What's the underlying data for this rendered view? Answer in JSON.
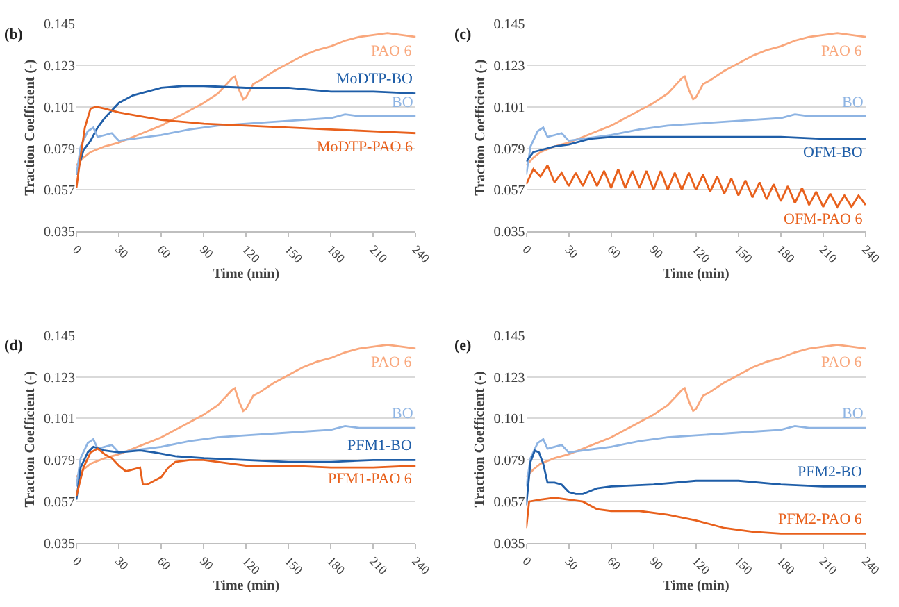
{
  "chart_data": [
    {
      "type": "line",
      "title": "(b)",
      "xlabel": "Time (min)",
      "ylabel": "Traction Coefficient (-)",
      "xlim": [
        0,
        240
      ],
      "xticks": [
        0,
        30,
        60,
        90,
        120,
        150,
        180,
        210,
        240
      ],
      "ylim": [
        0.035,
        0.145
      ],
      "yticks": [
        0.035,
        0.057,
        0.079,
        0.101,
        0.123,
        0.145
      ],
      "grid": "y",
      "legend": false,
      "marker": "none",
      "line_style": "solid",
      "series": [
        {
          "name": "PAO 6",
          "color": "#f9a77c",
          "x": [
            0,
            5,
            10,
            20,
            30,
            40,
            50,
            60,
            70,
            80,
            90,
            100,
            110,
            112,
            115,
            118,
            120,
            125,
            130,
            140,
            150,
            160,
            170,
            180,
            190,
            200,
            210,
            220,
            230,
            240
          ],
          "values": [
            0.07,
            0.074,
            0.077,
            0.08,
            0.082,
            0.085,
            0.088,
            0.091,
            0.095,
            0.099,
            0.103,
            0.108,
            0.116,
            0.117,
            0.11,
            0.105,
            0.106,
            0.113,
            0.115,
            0.12,
            0.124,
            0.128,
            0.131,
            0.133,
            0.136,
            0.138,
            0.139,
            0.14,
            0.139,
            0.138
          ]
        },
        {
          "name": "MoDTP-BO",
          "color": "#1f5ea8",
          "x": [
            0,
            5,
            10,
            15,
            20,
            30,
            40,
            50,
            60,
            75,
            90,
            120,
            150,
            180,
            210,
            240
          ],
          "values": [
            0.065,
            0.078,
            0.083,
            0.09,
            0.095,
            0.103,
            0.107,
            0.109,
            0.111,
            0.112,
            0.112,
            0.111,
            0.111,
            0.109,
            0.109,
            0.108
          ]
        },
        {
          "name": "BO",
          "color": "#8eb4e3",
          "x": [
            0,
            3,
            8,
            12,
            15,
            20,
            25,
            30,
            40,
            50,
            60,
            80,
            100,
            120,
            140,
            160,
            180,
            190,
            200,
            220,
            240
          ],
          "values": [
            0.065,
            0.08,
            0.088,
            0.09,
            0.085,
            0.086,
            0.087,
            0.083,
            0.084,
            0.085,
            0.086,
            0.089,
            0.091,
            0.092,
            0.093,
            0.094,
            0.095,
            0.097,
            0.096,
            0.096,
            0.096
          ]
        },
        {
          "name": "MoDTP-PAO 6",
          "color": "#e8601c",
          "x": [
            0,
            3,
            6,
            10,
            14,
            20,
            30,
            45,
            60,
            90,
            120,
            150,
            180,
            210,
            240
          ],
          "values": [
            0.058,
            0.075,
            0.09,
            0.1,
            0.101,
            0.1,
            0.098,
            0.096,
            0.094,
            0.092,
            0.091,
            0.09,
            0.089,
            0.088,
            0.087
          ]
        }
      ]
    },
    {
      "type": "line",
      "title": "(c)",
      "xlabel": "Time (min)",
      "ylabel": "Traction Coefficient (-)",
      "xlim": [
        0,
        240
      ],
      "xticks": [
        0,
        30,
        60,
        90,
        120,
        150,
        180,
        210,
        240
      ],
      "ylim": [
        0.035,
        0.145
      ],
      "yticks": [
        0.035,
        0.057,
        0.079,
        0.101,
        0.123,
        0.145
      ],
      "grid": "y",
      "legend": false,
      "marker": "none",
      "line_style": "solid",
      "series": [
        {
          "name": "PAO 6",
          "color": "#f9a77c",
          "x": [
            0,
            5,
            10,
            20,
            30,
            40,
            50,
            60,
            70,
            80,
            90,
            100,
            110,
            112,
            115,
            118,
            120,
            125,
            130,
            140,
            150,
            160,
            170,
            180,
            190,
            200,
            210,
            220,
            230,
            240
          ],
          "values": [
            0.07,
            0.074,
            0.077,
            0.08,
            0.082,
            0.085,
            0.088,
            0.091,
            0.095,
            0.099,
            0.103,
            0.108,
            0.116,
            0.117,
            0.11,
            0.105,
            0.106,
            0.113,
            0.115,
            0.12,
            0.124,
            0.128,
            0.131,
            0.133,
            0.136,
            0.138,
            0.139,
            0.14,
            0.139,
            0.138
          ]
        },
        {
          "name": "BO",
          "color": "#8eb4e3",
          "x": [
            0,
            3,
            8,
            12,
            15,
            20,
            25,
            30,
            40,
            50,
            60,
            80,
            100,
            120,
            140,
            160,
            180,
            190,
            200,
            220,
            240
          ],
          "values": [
            0.065,
            0.08,
            0.088,
            0.09,
            0.085,
            0.086,
            0.087,
            0.083,
            0.084,
            0.085,
            0.086,
            0.089,
            0.091,
            0.092,
            0.093,
            0.094,
            0.095,
            0.097,
            0.096,
            0.096,
            0.096
          ]
        },
        {
          "name": "OFM-BO",
          "color": "#1f5ea8",
          "x": [
            0,
            5,
            10,
            20,
            30,
            45,
            60,
            90,
            120,
            150,
            180,
            210,
            240
          ],
          "values": [
            0.072,
            0.077,
            0.078,
            0.08,
            0.081,
            0.084,
            0.085,
            0.085,
            0.085,
            0.085,
            0.085,
            0.084,
            0.084
          ]
        },
        {
          "name": "OFM-PAO 6",
          "color": "#e8601c",
          "x": [
            0,
            5,
            10,
            15,
            20,
            25,
            30,
            35,
            40,
            45,
            50,
            55,
            60,
            65,
            70,
            75,
            80,
            85,
            90,
            95,
            100,
            105,
            110,
            115,
            120,
            125,
            130,
            135,
            140,
            145,
            150,
            155,
            160,
            165,
            170,
            175,
            180,
            185,
            190,
            195,
            200,
            205,
            210,
            215,
            220,
            225,
            230,
            235,
            240
          ],
          "values": [
            0.06,
            0.068,
            0.064,
            0.07,
            0.061,
            0.066,
            0.059,
            0.066,
            0.059,
            0.067,
            0.059,
            0.067,
            0.058,
            0.068,
            0.058,
            0.067,
            0.058,
            0.067,
            0.057,
            0.067,
            0.057,
            0.066,
            0.057,
            0.066,
            0.057,
            0.065,
            0.056,
            0.064,
            0.055,
            0.063,
            0.054,
            0.062,
            0.053,
            0.061,
            0.052,
            0.06,
            0.051,
            0.059,
            0.05,
            0.058,
            0.049,
            0.056,
            0.048,
            0.055,
            0.048,
            0.054,
            0.048,
            0.054,
            0.049
          ]
        }
      ]
    },
    {
      "type": "line",
      "title": "(d)",
      "xlabel": "Time (min)",
      "ylabel": "Traction Coefficient (-)",
      "xlim": [
        0,
        240
      ],
      "xticks": [
        0,
        30,
        60,
        90,
        120,
        150,
        180,
        210,
        240
      ],
      "ylim": [
        0.035,
        0.145
      ],
      "yticks": [
        0.035,
        0.057,
        0.079,
        0.101,
        0.123,
        0.145
      ],
      "grid": "y",
      "legend": false,
      "marker": "none",
      "line_style": "solid",
      "series": [
        {
          "name": "PAO 6",
          "color": "#f9a77c",
          "x": [
            0,
            5,
            10,
            20,
            30,
            40,
            50,
            60,
            70,
            80,
            90,
            100,
            110,
            112,
            115,
            118,
            120,
            125,
            130,
            140,
            150,
            160,
            170,
            180,
            190,
            200,
            210,
            220,
            230,
            240
          ],
          "values": [
            0.07,
            0.074,
            0.077,
            0.08,
            0.082,
            0.085,
            0.088,
            0.091,
            0.095,
            0.099,
            0.103,
            0.108,
            0.116,
            0.117,
            0.11,
            0.105,
            0.106,
            0.113,
            0.115,
            0.12,
            0.124,
            0.128,
            0.131,
            0.133,
            0.136,
            0.138,
            0.139,
            0.14,
            0.139,
            0.138
          ]
        },
        {
          "name": "BO",
          "color": "#8eb4e3",
          "x": [
            0,
            3,
            8,
            12,
            15,
            20,
            25,
            30,
            40,
            50,
            60,
            80,
            100,
            120,
            140,
            160,
            180,
            190,
            200,
            220,
            240
          ],
          "values": [
            0.065,
            0.08,
            0.088,
            0.09,
            0.085,
            0.086,
            0.087,
            0.083,
            0.084,
            0.085,
            0.086,
            0.089,
            0.091,
            0.092,
            0.093,
            0.094,
            0.095,
            0.097,
            0.096,
            0.096,
            0.096
          ]
        },
        {
          "name": "PFM1-BO",
          "color": "#1f5ea8",
          "x": [
            0,
            3,
            8,
            12,
            20,
            30,
            45,
            55,
            70,
            90,
            120,
            150,
            180,
            210,
            240
          ],
          "values": [
            0.058,
            0.075,
            0.083,
            0.086,
            0.084,
            0.083,
            0.084,
            0.083,
            0.081,
            0.08,
            0.079,
            0.078,
            0.078,
            0.079,
            0.079
          ]
        },
        {
          "name": "PFM1-PAO 6",
          "color": "#e8601c",
          "x": [
            0,
            5,
            10,
            15,
            20,
            25,
            30,
            35,
            40,
            45,
            47,
            50,
            55,
            60,
            65,
            70,
            80,
            90,
            100,
            120,
            150,
            180,
            210,
            240
          ],
          "values": [
            0.06,
            0.075,
            0.083,
            0.085,
            0.082,
            0.08,
            0.076,
            0.073,
            0.074,
            0.075,
            0.066,
            0.066,
            0.068,
            0.07,
            0.075,
            0.078,
            0.079,
            0.079,
            0.078,
            0.076,
            0.076,
            0.075,
            0.075,
            0.076
          ]
        }
      ]
    },
    {
      "type": "line",
      "title": "(e)",
      "xlabel": "Time (min)",
      "ylabel": "Traction Coefficient (-)",
      "xlim": [
        0,
        240
      ],
      "xticks": [
        0,
        30,
        60,
        90,
        120,
        150,
        180,
        210,
        240
      ],
      "ylim": [
        0.035,
        0.145
      ],
      "yticks": [
        0.035,
        0.057,
        0.079,
        0.101,
        0.123,
        0.145
      ],
      "grid": "y",
      "legend": false,
      "marker": "none",
      "line_style": "solid",
      "series": [
        {
          "name": "PAO 6",
          "color": "#f9a77c",
          "x": [
            0,
            5,
            10,
            20,
            30,
            40,
            50,
            60,
            70,
            80,
            90,
            100,
            110,
            112,
            115,
            118,
            120,
            125,
            130,
            140,
            150,
            160,
            170,
            180,
            190,
            200,
            210,
            220,
            230,
            240
          ],
          "values": [
            0.07,
            0.074,
            0.077,
            0.08,
            0.082,
            0.085,
            0.088,
            0.091,
            0.095,
            0.099,
            0.103,
            0.108,
            0.116,
            0.117,
            0.11,
            0.105,
            0.106,
            0.113,
            0.115,
            0.12,
            0.124,
            0.128,
            0.131,
            0.133,
            0.136,
            0.138,
            0.139,
            0.14,
            0.139,
            0.138
          ]
        },
        {
          "name": "BO",
          "color": "#8eb4e3",
          "x": [
            0,
            3,
            8,
            12,
            15,
            20,
            25,
            30,
            40,
            50,
            60,
            80,
            100,
            120,
            140,
            160,
            180,
            190,
            200,
            220,
            240
          ],
          "values": [
            0.065,
            0.08,
            0.088,
            0.09,
            0.085,
            0.086,
            0.087,
            0.083,
            0.084,
            0.085,
            0.086,
            0.089,
            0.091,
            0.092,
            0.093,
            0.094,
            0.095,
            0.097,
            0.096,
            0.096,
            0.096
          ]
        },
        {
          "name": "PFM2-BO",
          "color": "#1f5ea8",
          "x": [
            0,
            3,
            6,
            9,
            12,
            15,
            20,
            25,
            30,
            35,
            40,
            50,
            60,
            90,
            120,
            150,
            180,
            210,
            240
          ],
          "values": [
            0.055,
            0.078,
            0.084,
            0.083,
            0.077,
            0.067,
            0.067,
            0.066,
            0.062,
            0.061,
            0.061,
            0.064,
            0.065,
            0.066,
            0.068,
            0.068,
            0.066,
            0.065,
            0.065
          ]
        },
        {
          "name": "PFM2-PAO 6",
          "color": "#e8601c",
          "x": [
            0,
            2,
            10,
            20,
            30,
            40,
            50,
            60,
            80,
            100,
            120,
            140,
            160,
            180,
            210,
            240
          ],
          "values": [
            0.043,
            0.057,
            0.058,
            0.059,
            0.058,
            0.057,
            0.053,
            0.052,
            0.052,
            0.05,
            0.047,
            0.043,
            0.041,
            0.04,
            0.04,
            0.04
          ]
        }
      ]
    }
  ]
}
